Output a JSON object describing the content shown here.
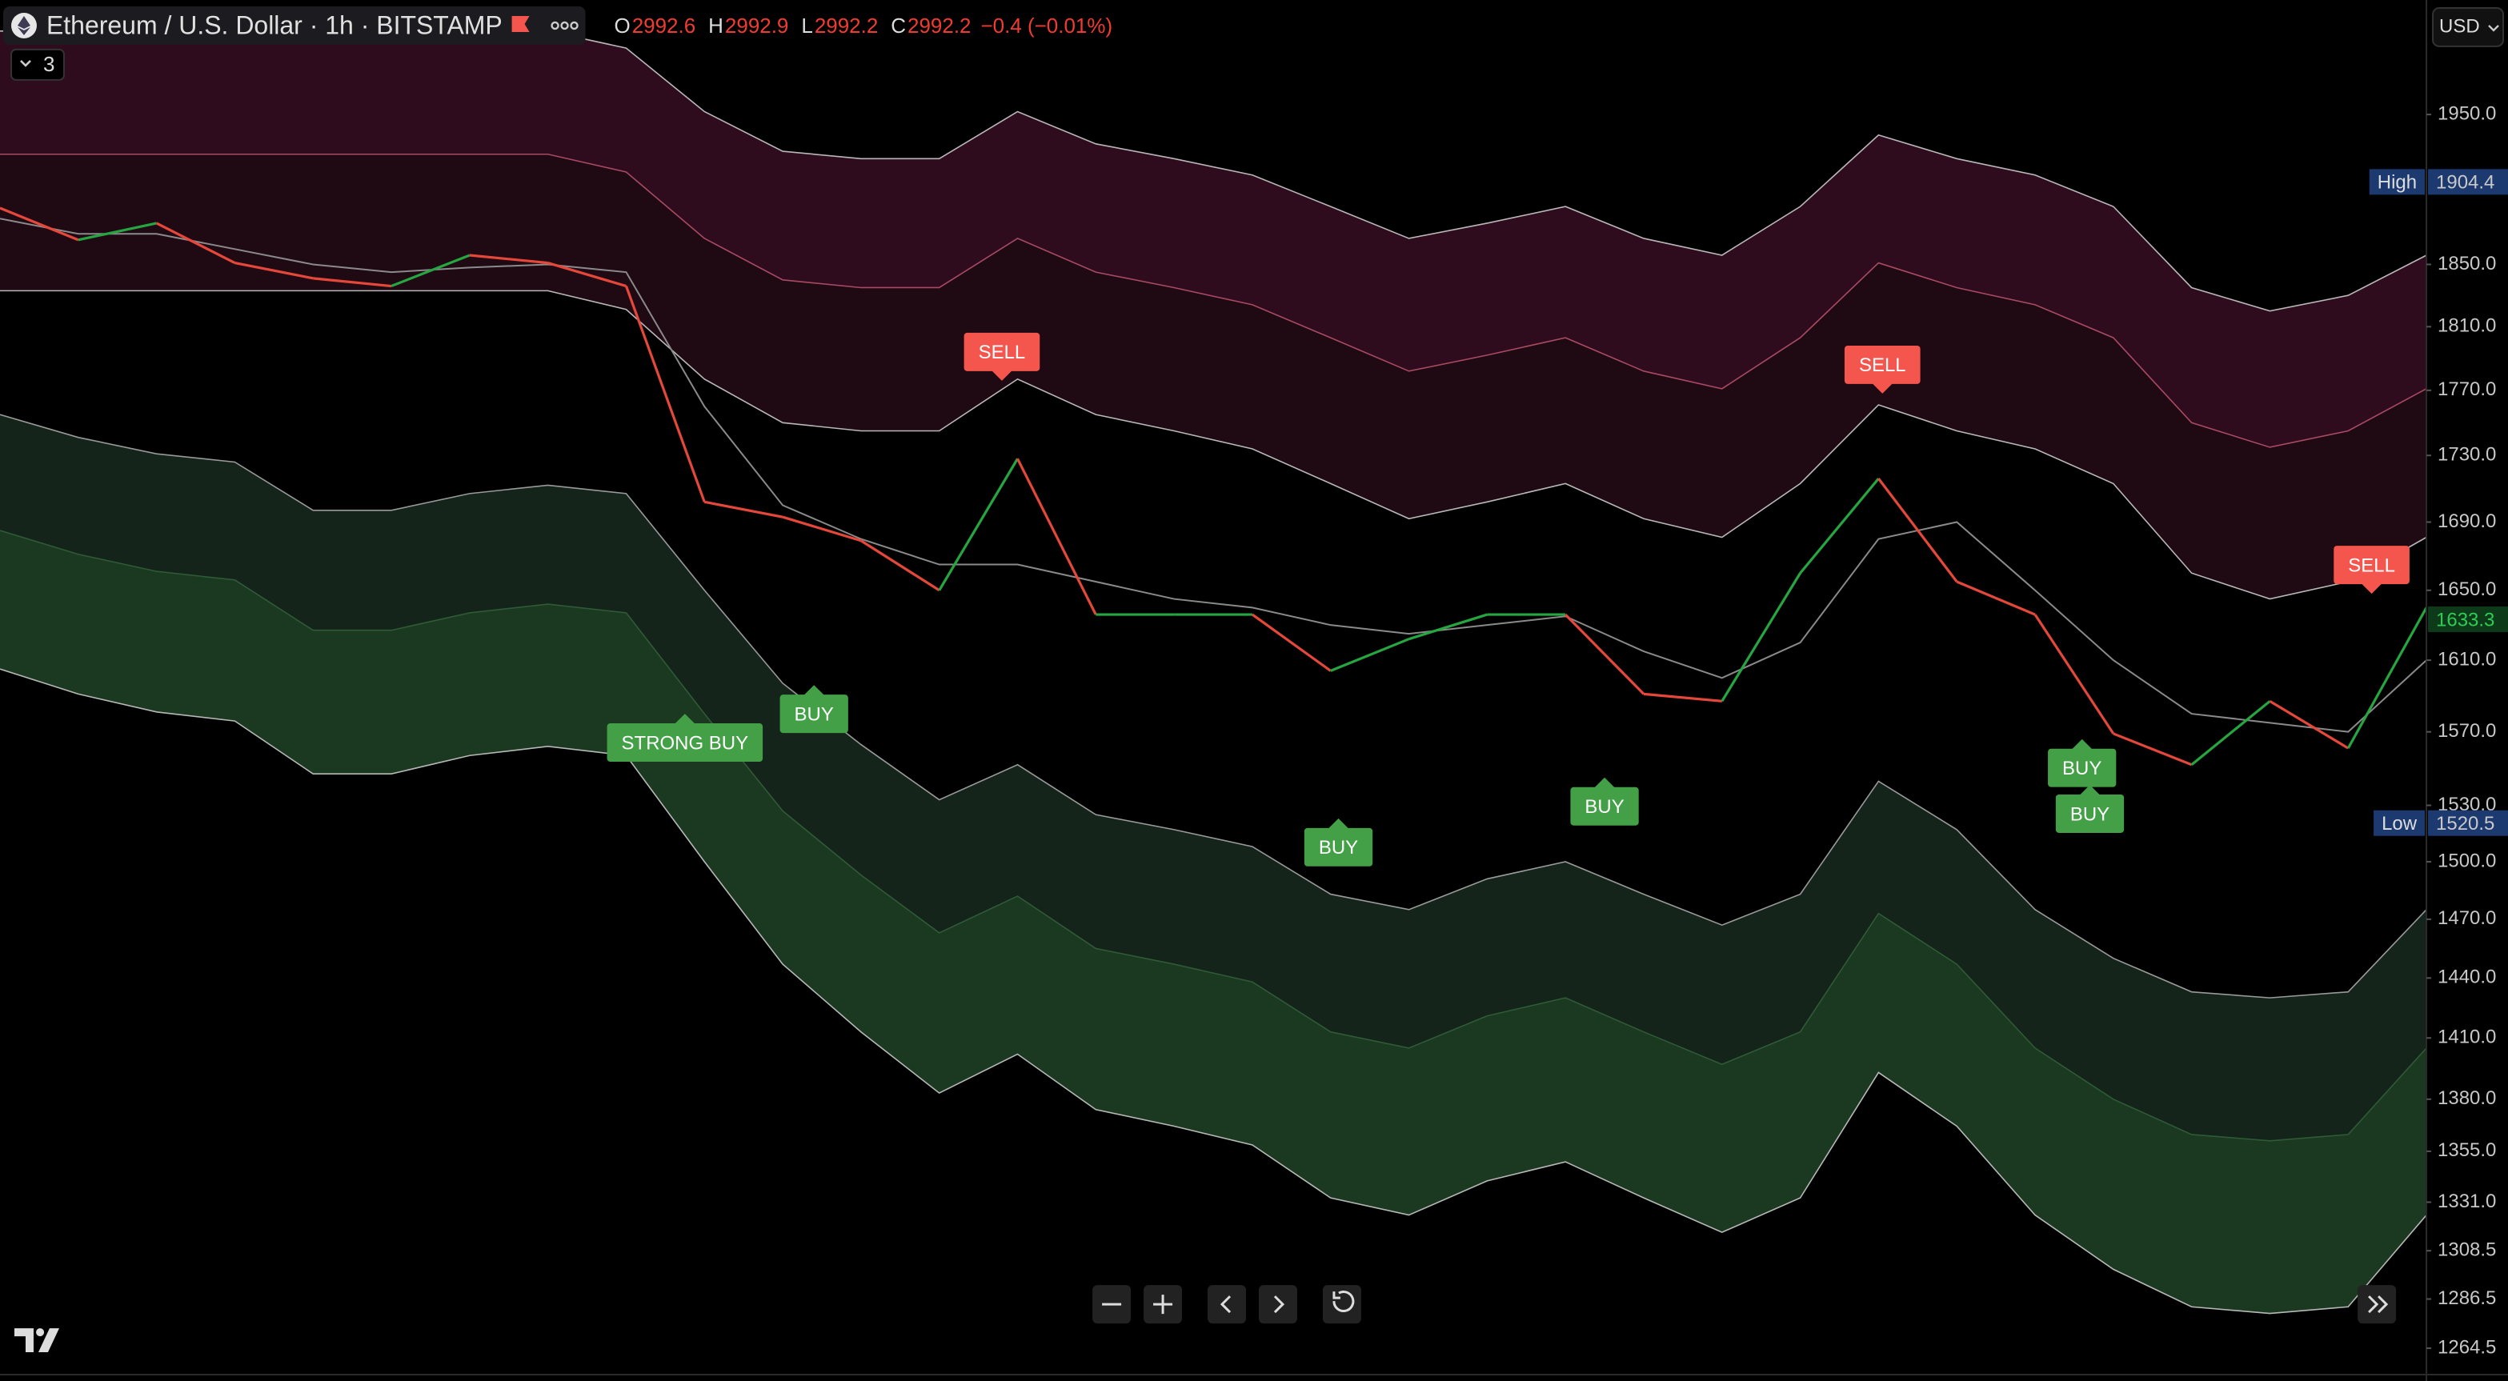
{
  "header": {
    "title": "Ethereum / U.S. Dollar · 1h · BITSTAMP",
    "ohlc": [
      {
        "label": "O",
        "value": 2992.6
      },
      {
        "label": "H",
        "value": 2992.9
      },
      {
        "label": "L",
        "value": 2992.2
      },
      {
        "label": "C",
        "value": 2992.2
      }
    ],
    "change": "−0.4 (−0.01%)",
    "indicators": 3,
    "currency": "USD"
  },
  "chart_data": {
    "type": "line",
    "log": true,
    "ylim": [
      1250,
      2030
    ],
    "yticks": [
      {
        "value": 1950,
        "label": "1950.0"
      },
      {
        "value": 1850,
        "label": "1850.0"
      },
      {
        "value": 1810,
        "label": "1810.0"
      },
      {
        "value": 1770,
        "label": "1770.0"
      },
      {
        "value": 1730,
        "label": "1730.0"
      },
      {
        "value": 1690,
        "label": "1690.0"
      },
      {
        "value": 1650,
        "label": "1650.0"
      },
      {
        "value": 1610,
        "label": "1610.0"
      },
      {
        "value": 1570,
        "label": "1570.0"
      },
      {
        "value": 1530,
        "label": "1530.0"
      },
      {
        "value": 1500,
        "label": "1500.0"
      },
      {
        "value": 1470,
        "label": "1470.0"
      },
      {
        "value": 1440,
        "label": "1440.0"
      },
      {
        "value": 1410,
        "label": "1410.0"
      },
      {
        "value": 1380,
        "label": "1380.0"
      },
      {
        "value": 1355,
        "label": "1355.0"
      },
      {
        "value": 1331,
        "label": "1331.0"
      },
      1308.5,
      1286.5,
      1264.5
    ],
    "price": {
      "up_color": "#26a641",
      "down_color": "#e5483a",
      "values": [
        1887,
        1866,
        1877,
        1851,
        1841,
        1836,
        1856,
        1851,
        1836,
        1702,
        1693,
        1679,
        1650,
        1728,
        1636,
        1636,
        1636,
        1604,
        1622,
        1636,
        1636,
        1591,
        1587,
        1660,
        1716,
        1655,
        1636,
        1569,
        1552,
        1587,
        1561,
        1640
      ]
    },
    "ma": {
      "color": "#8a8a8a",
      "values": [
        1880,
        1870,
        1870,
        1860,
        1850,
        1845,
        1848,
        1850,
        1845,
        1760,
        1700,
        1680,
        1665,
        1665,
        1655,
        1645,
        1640,
        1630,
        1625,
        1630,
        1635,
        1615,
        1600,
        1620,
        1680,
        1690,
        1650,
        1610,
        1580,
        1575,
        1570,
        1610
      ]
    },
    "bands": {
      "red": {
        "fills": [
          "#2e0c1e",
          "#1f0913"
        ],
        "edge_colors": [
          "#b8b8b8",
          "#a84a62",
          "#b8b8b8"
        ],
        "lines": [
          [
            2008,
            2008,
            2008,
            2008,
            2008,
            2008,
            2008,
            2008,
            1996,
            1952,
            1925,
            1920,
            1920,
            1952,
            1930,
            1920,
            1909,
            1888,
            1867,
            1877,
            1888,
            1867,
            1856,
            1888,
            1936,
            1920,
            1909,
            1888,
            1835,
            1820,
            1830,
            1856
          ],
          [
            1923,
            1923,
            1923,
            1923,
            1923,
            1923,
            1923,
            1923,
            1911,
            1867,
            1840,
            1835,
            1835,
            1867,
            1845,
            1835,
            1824,
            1803,
            1782,
            1792,
            1803,
            1782,
            1771,
            1803,
            1851,
            1835,
            1824,
            1803,
            1750,
            1735,
            1745,
            1771
          ],
          [
            1833,
            1833,
            1833,
            1833,
            1833,
            1833,
            1833,
            1833,
            1821,
            1777,
            1750,
            1745,
            1745,
            1777,
            1755,
            1745,
            1734,
            1713,
            1692,
            1702,
            1713,
            1692,
            1681,
            1713,
            1761,
            1745,
            1734,
            1713,
            1660,
            1645,
            1655,
            1681
          ]
        ]
      },
      "green": {
        "fills": [
          "#14241a",
          "#1b3920"
        ],
        "edge_colors": [
          "#9a9a9a",
          "#2f5a36",
          "#b8b8b8"
        ],
        "lines": [
          [
            1755,
            1741,
            1731,
            1726,
            1697,
            1697,
            1707,
            1712,
            1707,
            1650,
            1597,
            1563,
            1533,
            1552,
            1525,
            1517,
            1508,
            1483,
            1475,
            1491,
            1500,
            1483,
            1467,
            1483,
            1543,
            1517,
            1475,
            1450,
            1433,
            1430,
            1433,
            1475
          ],
          [
            1685,
            1671,
            1661,
            1656,
            1627,
            1627,
            1637,
            1642,
            1637,
            1580,
            1527,
            1493,
            1463,
            1482,
            1455,
            1447,
            1438,
            1413,
            1405,
            1421,
            1430,
            1413,
            1397,
            1413,
            1473,
            1447,
            1405,
            1380,
            1363,
            1360,
            1363,
            1405
          ],
          [
            1605,
            1591,
            1581,
            1576,
            1547,
            1547,
            1557,
            1562,
            1557,
            1500,
            1447,
            1413,
            1383,
            1402,
            1375,
            1367,
            1358,
            1333,
            1325,
            1341,
            1350,
            1333,
            1317,
            1333,
            1393,
            1367,
            1325,
            1300,
            1283,
            1280,
            1283,
            1325
          ]
        ]
      }
    },
    "signals": [
      {
        "label": "STRONG BUY",
        "side": "buy",
        "x": 8.75,
        "price": 1580
      },
      {
        "label": "BUY",
        "side": "buy",
        "x": 10.4,
        "price": 1596
      },
      {
        "label": "SELL",
        "side": "sell",
        "x": 12.8,
        "price": 1776
      },
      {
        "label": "BUY",
        "side": "buy",
        "x": 17.1,
        "price": 1523
      },
      {
        "label": "BUY",
        "side": "buy",
        "x": 20.5,
        "price": 1545
      },
      {
        "label": "SELL",
        "side": "sell",
        "x": 24.05,
        "price": 1768
      },
      {
        "label": "BUY",
        "side": "buy",
        "x": 26.6,
        "price": 1566
      },
      {
        "label": "BUY",
        "side": "buy",
        "x": 26.7,
        "price": 1541
      },
      {
        "label": "SELL",
        "side": "sell",
        "x": 30.3,
        "price": 1648
      }
    ],
    "signal_colors": {
      "buy": "#43a047",
      "sell": "#f4564d"
    },
    "badges": [
      {
        "label": "High",
        "value": 1904.4,
        "color": "#1c3a70"
      },
      {
        "label": "Low",
        "value": 1520.5,
        "color": "#1c3a70"
      },
      {
        "value": 1633.3,
        "color": "#0d3b1a"
      }
    ]
  }
}
